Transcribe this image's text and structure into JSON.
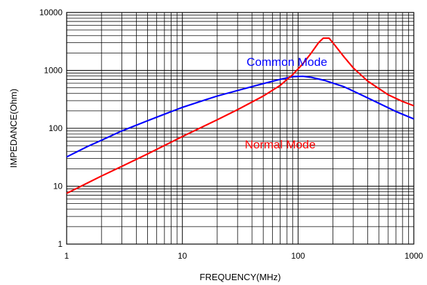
{
  "chart_data": {
    "type": "line",
    "title": "",
    "xlabel": "FREQUENCY(MHz)",
    "ylabel": "IMPEDANCE(Ohm)",
    "x_scale": "log",
    "y_scale": "log",
    "xlim": [
      1,
      1000
    ],
    "ylim": [
      1,
      10000
    ],
    "grid": true,
    "x_ticks": [
      "1",
      "10",
      "100",
      "1000"
    ],
    "y_ticks": [
      "1",
      "10",
      "100",
      "1000",
      "10000"
    ],
    "series": [
      {
        "name": "Common Mode",
        "color": "#0000ff",
        "points": [
          [
            1,
            32
          ],
          [
            1.5,
            48
          ],
          [
            2,
            62
          ],
          [
            3,
            90
          ],
          [
            5,
            135
          ],
          [
            7,
            175
          ],
          [
            10,
            230
          ],
          [
            15,
            300
          ],
          [
            20,
            360
          ],
          [
            30,
            450
          ],
          [
            50,
            590
          ],
          [
            70,
            700
          ],
          [
            90,
            780
          ],
          [
            110,
            790
          ],
          [
            130,
            760
          ],
          [
            170,
            670
          ],
          [
            250,
            520
          ],
          [
            350,
            380
          ],
          [
            500,
            270
          ],
          [
            700,
            195
          ],
          [
            1000,
            145
          ]
        ]
      },
      {
        "name": "Normal Mode",
        "color": "#ff0000",
        "points": [
          [
            1,
            7.5
          ],
          [
            2,
            15
          ],
          [
            3,
            22
          ],
          [
            5,
            36
          ],
          [
            10,
            72
          ],
          [
            20,
            140
          ],
          [
            30,
            210
          ],
          [
            50,
            360
          ],
          [
            70,
            550
          ],
          [
            90,
            850
          ],
          [
            110,
            1300
          ],
          [
            130,
            2000
          ],
          [
            150,
            3000
          ],
          [
            165,
            3600
          ],
          [
            185,
            3600
          ],
          [
            200,
            3000
          ],
          [
            250,
            1700
          ],
          [
            300,
            1100
          ],
          [
            400,
            650
          ],
          [
            600,
            380
          ],
          [
            800,
            290
          ],
          [
            1000,
            245
          ]
        ]
      }
    ],
    "annotations": [
      {
        "text": "Common Mode",
        "x": 80,
        "y": 1200,
        "color": "#0000ff"
      },
      {
        "text": "Normal Mode",
        "x": 70,
        "y": 45,
        "color": "#ff0000"
      }
    ]
  }
}
